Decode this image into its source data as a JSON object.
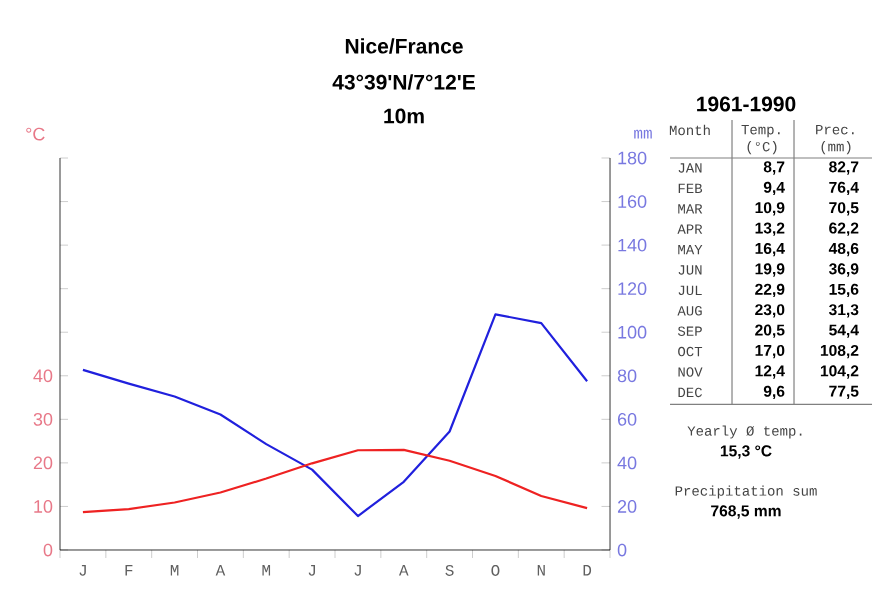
{
  "chart_data": [
    {
      "type": "line",
      "title": "Nice/France",
      "subtitle": "43°39'N/7°12'E",
      "annotations": [
        "10m"
      ],
      "ylabel": "°C",
      "y2label": "mm",
      "categories": [
        "J",
        "F",
        "M",
        "A",
        "M",
        "J",
        "J",
        "A",
        "S",
        "O",
        "N",
        "D"
      ],
      "series": [
        {
          "color": "#ee2222",
          "axis": "y",
          "values": [
            8.7,
            9.4,
            10.9,
            13.2,
            16.4,
            19.9,
            22.9,
            23.0,
            20.5,
            17.0,
            12.4,
            9.6
          ]
        },
        {
          "color": "#2020dd",
          "axis": "y2",
          "values": [
            82.7,
            76.4,
            70.5,
            62.2,
            48.6,
            36.9,
            15.6,
            31.3,
            54.4,
            108.2,
            104.2,
            77.5
          ]
        }
      ],
      "ylim": [
        0,
        90
      ],
      "yticks": [
        0,
        10,
        20,
        30,
        40,
        {
          "value": 50,
          "label": null
        },
        {
          "value": 60,
          "label": null
        },
        {
          "value": 70,
          "label": null
        },
        {
          "value": 80,
          "label": null
        },
        {
          "value": 90,
          "label": null
        }
      ],
      "y2lim": [
        0,
        180
      ],
      "y2ticks": [
        0,
        20,
        40,
        60,
        80,
        100,
        120,
        140,
        160,
        180
      ],
      "marker": "none",
      "line_style": "solid"
    },
    {
      "type": "other",
      "title": "1961-1990",
      "xlabel": "Month",
      "categories": [
        "JAN",
        "FEB",
        "MAR",
        "APR",
        "MAY",
        "JUN",
        "JUL",
        "AUG",
        "SEP",
        "OCT",
        "NOV",
        "DEC"
      ],
      "series": [
        {
          "name": "Temp. (°C)",
          "values": [
            8.7,
            9.4,
            10.9,
            13.2,
            16.4,
            19.9,
            22.9,
            23.0,
            20.5,
            17.0,
            12.4,
            9.6
          ],
          "value_labels": [
            "8,7",
            "9,4",
            "10,9",
            "13,2",
            "16,4",
            "19,9",
            "22,9",
            "23,0",
            "20,5",
            "17,0",
            "12,4",
            "9,6"
          ]
        },
        {
          "name": "Prec. (mm)",
          "values": [
            82.7,
            76.4,
            70.5,
            62.2,
            48.6,
            36.9,
            15.6,
            31.3,
            54.4,
            108.2,
            104.2,
            77.5
          ],
          "value_labels": [
            "82,7",
            "76,4",
            "70,5",
            "62,2",
            "48,6",
            "36,9",
            "15,6",
            "31,3",
            "54,4",
            "108,2",
            "104,2",
            "77,5"
          ]
        }
      ],
      "annotations": [
        "Yearly Ø temp.",
        "15,3 °C",
        "Precipitation sum",
        "768,5 mm"
      ]
    }
  ]
}
